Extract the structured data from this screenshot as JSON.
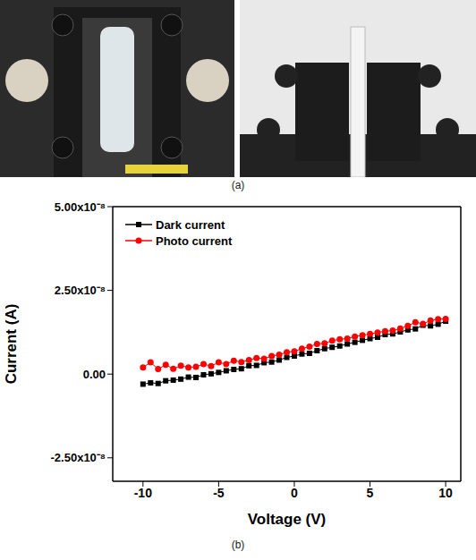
{
  "panel_labels": {
    "a": "(a)",
    "b": "(b)"
  },
  "chart_data": {
    "type": "line",
    "x_label": "Voltage (V)",
    "y_label": "Current (A)",
    "x": [
      -10,
      -9.5,
      -9,
      -8.5,
      -8,
      -7.5,
      -7,
      -6.5,
      -6,
      -5.5,
      -5,
      -4.5,
      -4,
      -3.5,
      -3,
      -2.5,
      -2,
      -1.5,
      -1,
      -0.5,
      0,
      0.5,
      1,
      1.5,
      2,
      2.5,
      3,
      3.5,
      4,
      4.5,
      5,
      5.5,
      6,
      6.5,
      7,
      7.5,
      8,
      8.5,
      9,
      9.5,
      10
    ],
    "series": [
      {
        "name": "Dark current",
        "color": "#000000",
        "marker": "square",
        "values": [
          -3e-09,
          -2.6e-09,
          -2.8e-09,
          -2e-09,
          -1.8e-09,
          -1.5e-09,
          -9e-10,
          -1e-09,
          -2e-10,
          1e-10,
          5e-10,
          1e-09,
          1.4e-09,
          1.6e-09,
          2.5e-09,
          2.6e-09,
          3.4e-09,
          3.6e-09,
          4.2e-09,
          5e-09,
          5.4e-09,
          6e-09,
          6.2e-09,
          7e-09,
          7.6e-09,
          8e-09,
          8.4e-09,
          9e-09,
          9.5e-09,
          1.01e-08,
          1.06e-08,
          1.1e-08,
          1.18e-08,
          1.2e-08,
          1.26e-08,
          1.32e-08,
          1.35e-08,
          1.46e-08,
          1.44e-08,
          1.49e-08,
          1.58e-08
        ]
      },
      {
        "name": "Photo current",
        "color": "#ff0000",
        "marker": "circle",
        "values": [
          2e-09,
          3.5e-09,
          1.5e-09,
          2.8e-09,
          1.6e-09,
          2.5e-09,
          2e-09,
          2.2e-09,
          3e-09,
          2.4e-09,
          3.5e-09,
          3e-09,
          4e-09,
          3.6e-09,
          4.2e-09,
          4.8e-09,
          4.6e-09,
          5.4e-09,
          5.8e-09,
          6.5e-09,
          6.8e-09,
          7.6e-09,
          8.2e-09,
          9e-09,
          9.2e-09,
          1e-08,
          1.04e-08,
          1.06e-08,
          1.12e-08,
          1.16e-08,
          1.2e-08,
          1.24e-08,
          1.28e-08,
          1.3e-08,
          1.36e-08,
          1.44e-08,
          1.55e-08,
          1.5e-08,
          1.6e-08,
          1.64e-08,
          1.65e-08
        ]
      }
    ],
    "xlim": [
      -12,
      11
    ],
    "xticks": [
      -10,
      -5,
      0,
      5,
      10
    ],
    "ylim": [
      -3.2e-08,
      5e-08
    ],
    "yticks": [
      {
        "value": -2.5e-08,
        "label": "-2.50x10⁻⁸"
      },
      {
        "value": 0,
        "label": "0.00"
      },
      {
        "value": 2.5e-08,
        "label": "2.50x10⁻⁸"
      },
      {
        "value": 5e-08,
        "label": "5.00x10⁻⁸"
      }
    ],
    "legend": "upper left",
    "grid": false
  }
}
